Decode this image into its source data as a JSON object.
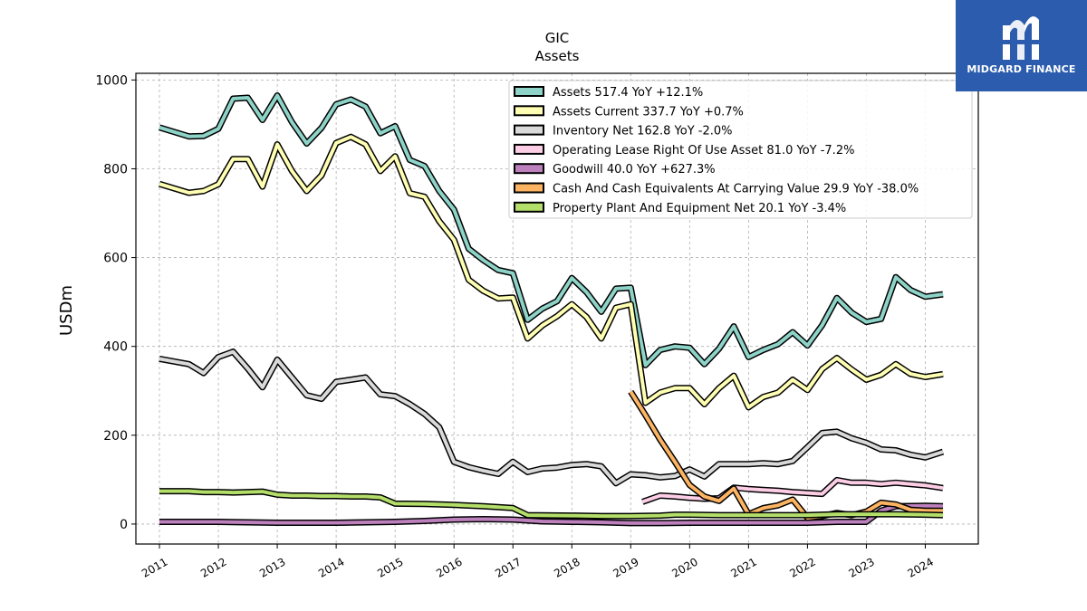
{
  "brand": {
    "name": "MIDGARD FINANCE",
    "logo_icon": "midgard-logo-icon",
    "background": "#2b5cad"
  },
  "chart_data": {
    "type": "line",
    "title": "GIC",
    "subtitle": "Assets",
    "ylabel": "USDm",
    "xlabel": "",
    "xlim": [
      2010.6,
      2024.9
    ],
    "ylim": [
      -45,
      1015
    ],
    "yticks": [
      0,
      200,
      400,
      600,
      800,
      1000
    ],
    "xticks": [
      2011,
      2012,
      2013,
      2014,
      2015,
      2016,
      2017,
      2018,
      2019,
      2020,
      2021,
      2022,
      2023,
      2024
    ],
    "grid": true,
    "legend_position": "top-right",
    "series": [
      {
        "name": "Assets",
        "label": "Assets  517.4 YoY +12.1%",
        "color": "#8dd3c7",
        "x": [
          2011.0,
          2011.5,
          2011.75,
          2012.0,
          2012.25,
          2012.5,
          2012.75,
          2013.0,
          2013.25,
          2013.5,
          2013.75,
          2014.0,
          2014.25,
          2014.5,
          2014.75,
          2015.0,
          2015.25,
          2015.5,
          2015.75,
          2016.0,
          2016.25,
          2016.5,
          2016.75,
          2017.0,
          2017.25,
          2017.5,
          2017.75,
          2018.0,
          2018.25,
          2018.5,
          2018.75,
          2019.0,
          2019.25,
          2019.5,
          2019.75,
          2020.0,
          2020.25,
          2020.5,
          2020.75,
          2021.0,
          2021.25,
          2021.5,
          2021.75,
          2022.0,
          2022.25,
          2022.5,
          2022.75,
          2023.0,
          2023.25,
          2023.5,
          2023.75,
          2024.0,
          2024.3
        ],
        "y": [
          893,
          873,
          874,
          890,
          958,
          960,
          910,
          965,
          905,
          857,
          892,
          945,
          956,
          940,
          880,
          896,
          820,
          806,
          750,
          708,
          620,
          594,
          572,
          565,
          460,
          485,
          502,
          554,
          522,
          478,
          530,
          532,
          358,
          392,
          400,
          397,
          360,
          395,
          445,
          376,
          392,
          405,
          432,
          402,
          448,
          509,
          476,
          455,
          462,
          556,
          527,
          512,
          517.4
        ]
      },
      {
        "name": "Assets Current",
        "label": "Assets Current  337.7 YoY +0.7%",
        "color": "#ffffb3",
        "x": [
          2011.0,
          2011.5,
          2011.75,
          2012.0,
          2012.25,
          2012.5,
          2012.75,
          2013.0,
          2013.25,
          2013.5,
          2013.75,
          2014.0,
          2014.25,
          2014.5,
          2014.75,
          2015.0,
          2015.25,
          2015.5,
          2015.75,
          2016.0,
          2016.25,
          2016.5,
          2016.75,
          2017.0,
          2017.25,
          2017.5,
          2017.75,
          2018.0,
          2018.25,
          2018.5,
          2018.75,
          2019.0,
          2019.25,
          2019.5,
          2019.75,
          2020.0,
          2020.25,
          2020.5,
          2020.75,
          2021.0,
          2021.25,
          2021.5,
          2021.75,
          2022.0,
          2022.25,
          2022.5,
          2022.75,
          2023.0,
          2023.25,
          2023.5,
          2023.75,
          2024.0,
          2024.3
        ],
        "y": [
          766,
          746,
          750,
          765,
          822,
          822,
          760,
          855,
          795,
          750,
          785,
          858,
          872,
          855,
          795,
          828,
          745,
          737,
          682,
          640,
          550,
          525,
          508,
          510,
          418,
          447,
          468,
          495,
          466,
          418,
          487,
          495,
          273,
          296,
          306,
          306,
          270,
          306,
          334,
          263,
          286,
          296,
          325,
          302,
          349,
          374,
          348,
          325,
          336,
          360,
          338,
          331,
          337.7
        ]
      },
      {
        "name": "Inventory Net",
        "label": "Inventory Net  162.8 YoY -2.0%",
        "color": "#d9d9d9",
        "x": [
          2011.0,
          2011.5,
          2011.75,
          2012.0,
          2012.25,
          2012.5,
          2012.75,
          2013.0,
          2013.25,
          2013.5,
          2013.75,
          2014.0,
          2014.25,
          2014.5,
          2014.75,
          2015.0,
          2015.25,
          2015.5,
          2015.75,
          2016.0,
          2016.25,
          2016.5,
          2016.75,
          2017.0,
          2017.25,
          2017.5,
          2017.75,
          2018.0,
          2018.25,
          2018.5,
          2018.75,
          2019.0,
          2019.25,
          2019.5,
          2019.75,
          2020.0,
          2020.25,
          2020.5,
          2020.75,
          2021.0,
          2021.25,
          2021.5,
          2021.75,
          2022.0,
          2022.25,
          2022.5,
          2022.75,
          2023.0,
          2023.25,
          2023.5,
          2023.75,
          2024.0,
          2024.3
        ],
        "y": [
          372,
          360,
          340,
          376,
          388,
          350,
          308,
          370,
          330,
          290,
          282,
          320,
          325,
          330,
          292,
          288,
          270,
          248,
          218,
          140,
          128,
          120,
          113,
          140,
          117,
          125,
          127,
          133,
          135,
          130,
          92,
          112,
          110,
          105,
          108,
          123,
          107,
          135,
          135,
          135,
          137,
          135,
          142,
          173,
          205,
          208,
          193,
          183,
          168,
          166,
          156,
          150,
          162.8
        ]
      },
      {
        "name": "Operating Lease Right Of Use Asset",
        "label": "Operating Lease Right Of Use Asset  81.0 YoY -7.2%",
        "color": "#fccde5",
        "x": [
          2019.2,
          2019.5,
          2019.75,
          2020.0,
          2020.25,
          2020.5,
          2020.75,
          2021.0,
          2021.25,
          2021.5,
          2021.75,
          2022.0,
          2022.25,
          2022.5,
          2022.75,
          2023.0,
          2023.25,
          2023.5,
          2023.75,
          2024.0,
          2024.3
        ],
        "y": [
          50,
          64,
          62,
          59,
          57,
          58,
          82,
          79,
          77,
          75,
          72,
          70,
          68,
          99,
          93,
          93,
          90,
          93,
          90,
          87,
          81.0
        ]
      },
      {
        "name": "Goodwill",
        "label": "Goodwill  40.0 YoY +627.3%",
        "color": "#bc80bd",
        "x": [
          2011.0,
          2012.0,
          2013.0,
          2014.0,
          2015.0,
          2015.5,
          2016.0,
          2016.5,
          2017.0,
          2017.5,
          2018.0,
          2018.5,
          2019.0,
          2019.5,
          2020.0,
          2020.5,
          2021.0,
          2021.5,
          2022.0,
          2022.5,
          2023.0,
          2023.25,
          2023.5,
          2024.0,
          2024.3
        ],
        "y": [
          5,
          5,
          3,
          3,
          5,
          7,
          10,
          11,
          10,
          6,
          5,
          4,
          2,
          2,
          3,
          3,
          3,
          3,
          3,
          5,
          5,
          30,
          40,
          41,
          40.0
        ]
      },
      {
        "name": "Cash And Cash Equivalents At Carrying Value",
        "label": "Cash And Cash Equivalents At Carrying Value  29.9 YoY -38.0%",
        "color": "#fdb462",
        "x": [
          2019.0,
          2019.25,
          2019.5,
          2019.75,
          2020.0,
          2020.25,
          2020.5,
          2020.75,
          2021.0,
          2021.25,
          2021.5,
          2021.75,
          2022.0,
          2022.25,
          2022.5,
          2022.75,
          2023.0,
          2023.25,
          2023.5,
          2023.75,
          2024.0,
          2024.3
        ],
        "y": [
          298,
          245,
          190,
          140,
          88,
          62,
          52,
          80,
          22,
          36,
          42,
          55,
          14,
          18,
          25,
          20,
          28,
          48,
          44,
          32,
          30,
          29.9
        ]
      },
      {
        "name": "Property Plant And Equipment Net",
        "label": "Property Plant And Equipment Net  20.1 YoY -3.4%",
        "color": "#b3de69",
        "x": [
          2011.0,
          2011.5,
          2011.75,
          2012.0,
          2012.25,
          2012.5,
          2012.75,
          2013.0,
          2013.25,
          2013.5,
          2013.75,
          2014.0,
          2014.25,
          2014.5,
          2014.75,
          2015.0,
          2015.5,
          2016.0,
          2016.5,
          2017.0,
          2017.25,
          2018.0,
          2018.5,
          2019.0,
          2019.5,
          2019.75,
          2020.0,
          2020.5,
          2021.0,
          2021.5,
          2022.0,
          2022.5,
          2023.0,
          2023.5,
          2024.0,
          2024.3
        ],
        "y": [
          74,
          74,
          72,
          72,
          71,
          72,
          73,
          66,
          64,
          64,
          63,
          63,
          62,
          62,
          60,
          46,
          45,
          43,
          40,
          36,
          20,
          19,
          18,
          18,
          19,
          21,
          21,
          20,
          20,
          20,
          20,
          22,
          22,
          22,
          21,
          20.1
        ]
      }
    ]
  }
}
